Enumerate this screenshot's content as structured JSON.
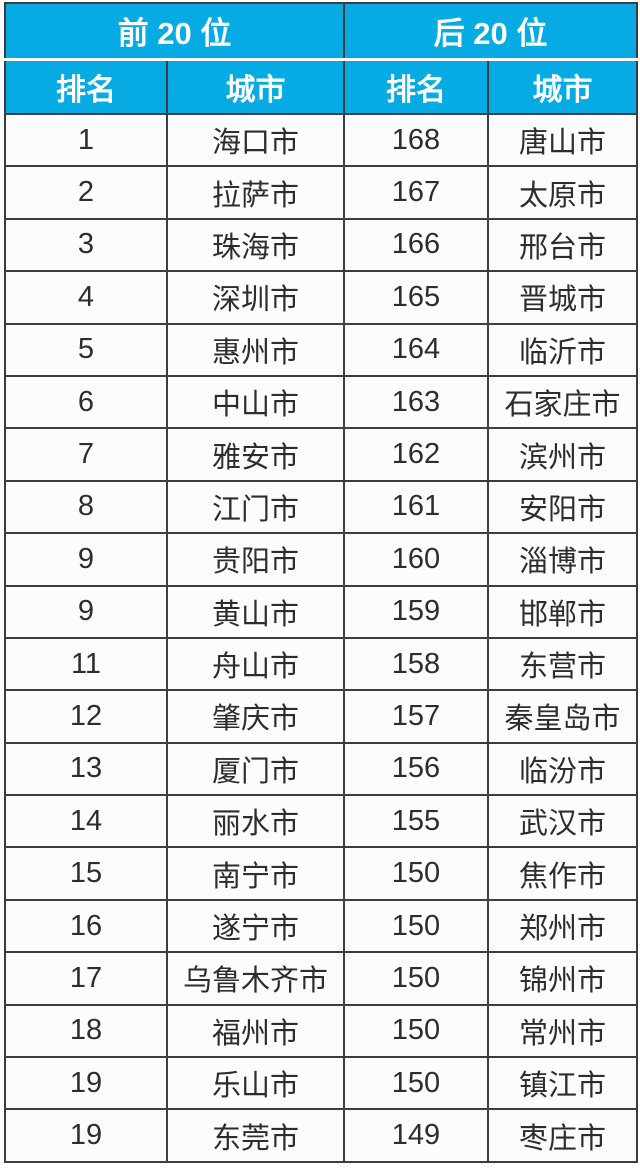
{
  "chart_data": {
    "type": "table",
    "group_headers": [
      "前 20 位",
      "后 20 位"
    ],
    "columns": [
      "排名",
      "城市",
      "排名",
      "城市"
    ],
    "rows": [
      [
        "1",
        "海口市",
        "168",
        "唐山市"
      ],
      [
        "2",
        "拉萨市",
        "167",
        "太原市"
      ],
      [
        "3",
        "珠海市",
        "166",
        "邢台市"
      ],
      [
        "4",
        "深圳市",
        "165",
        "晋城市"
      ],
      [
        "5",
        "惠州市",
        "164",
        "临沂市"
      ],
      [
        "6",
        "中山市",
        "163",
        "石家庄市"
      ],
      [
        "7",
        "雅安市",
        "162",
        "滨州市"
      ],
      [
        "8",
        "江门市",
        "161",
        "安阳市"
      ],
      [
        "9",
        "贵阳市",
        "160",
        "淄博市"
      ],
      [
        "9",
        "黄山市",
        "159",
        "邯郸市"
      ],
      [
        "11",
        "舟山市",
        "158",
        "东营市"
      ],
      [
        "12",
        "肇庆市",
        "157",
        "秦皇岛市"
      ],
      [
        "13",
        "厦门市",
        "156",
        "临汾市"
      ],
      [
        "14",
        "丽水市",
        "155",
        "武汉市"
      ],
      [
        "15",
        "南宁市",
        "150",
        "焦作市"
      ],
      [
        "16",
        "遂宁市",
        "150",
        "郑州市"
      ],
      [
        "17",
        "乌鲁木齐市",
        "150",
        "锦州市"
      ],
      [
        "18",
        "福州市",
        "150",
        "常州市"
      ],
      [
        "19",
        "乐山市",
        "150",
        "镇江市"
      ],
      [
        "19",
        "东莞市",
        "149",
        "枣庄市"
      ]
    ],
    "colors": {
      "header_bg": "#07ABE4",
      "header_text": "#FFFFFF",
      "grid_border": "#3D3D3D",
      "cell_text": "#2D2D2D",
      "cell_bg": "#FCFCFC"
    },
    "layout": {
      "grid": "on",
      "legend": "none"
    }
  }
}
